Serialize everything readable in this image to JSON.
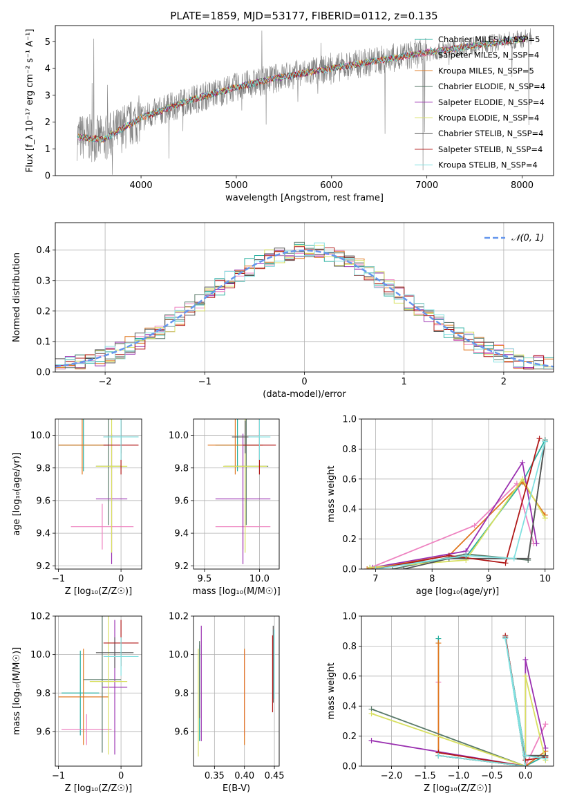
{
  "figure_title": "PLATE=1859, MJD=53177, FIBERID=0112, z=0.135",
  "colors": {
    "spectrum_gray": "#808080",
    "models": [
      "#2ab0a0",
      "#ee82c0",
      "#e07820",
      "#5a7a6a",
      "#9a30b0",
      "#d8e060",
      "#555555",
      "#b01818",
      "#80e0e0"
    ],
    "normal_dashed": "#6495ed",
    "grid": "#b0b0b0"
  },
  "models": [
    {
      "name": "Chabrier MILES, N$_{SSP}$=5",
      "color": "#2ab0a0"
    },
    {
      "name": "Salpeter MILES, N$_{SSP}$=4",
      "color": "#ee82c0"
    },
    {
      "name": "Kroupa MILES, N$_{SSP}$=5",
      "color": "#e07820"
    },
    {
      "name": "Chabrier ELODIE, N$_{SSP}$=4",
      "color": "#5a7a6a"
    },
    {
      "name": "Salpeter ELODIE, N$_{SSP}$=4",
      "color": "#9a30b0"
    },
    {
      "name": "Kroupa ELODIE, N$_{SSP}$=4",
      "color": "#d8e060"
    },
    {
      "name": "Chabrier STELIB, N$_{SSP}$=4",
      "color": "#555555"
    },
    {
      "name": "Salpeter STELIB, N$_{SSP}$=4",
      "color": "#b01818"
    },
    {
      "name": "Kroupa STELIB, N$_{SSP}$=4",
      "color": "#80e0e0"
    }
  ],
  "legend_labels": [
    "Chabrier MILES, N_SSP=5",
    "Salpeter MILES, N_SSP=4",
    "Kroupa MILES, N_SSP=5",
    "Chabrier ELODIE, N_SSP=4",
    "Salpeter ELODIE, N_SSP=4",
    "Kroupa ELODIE, N_SSP=4",
    "Chabrier STELIB, N_SSP=4",
    "Salpeter STELIB, N_SSP=4",
    "Kroupa STELIB, N_SSP=4"
  ],
  "chart_data": [
    {
      "id": "spectrum",
      "type": "line",
      "xlabel": "wavelength [Angstrom, rest frame]",
      "ylabel": "Flux [f_λ 10⁻¹⁷ erg cm⁻² s⁻¹ A⁻¹]",
      "xlim": [
        3100,
        8330
      ],
      "ylim": [
        0,
        5.6
      ],
      "xticks": [
        4000,
        5000,
        6000,
        7000,
        8000
      ],
      "yticks": [
        0,
        1,
        2,
        3,
        4,
        5
      ],
      "grid": false,
      "legend": "upper-right",
      "continuum": {
        "x": [
          3330,
          3600,
          4000,
          4500,
          5000,
          5500,
          6000,
          6500,
          7000,
          7500,
          8000,
          8100
        ],
        "y": [
          1.45,
          1.35,
          2.15,
          2.8,
          3.3,
          3.7,
          4.0,
          4.3,
          4.6,
          4.85,
          5.1,
          5.2
        ]
      }
    },
    {
      "id": "residual_histogram",
      "type": "line",
      "xlabel": "(data-model)/error",
      "ylabel": "Normed distribution",
      "xlim": [
        -2.5,
        2.5
      ],
      "ylim": [
        0,
        0.49
      ],
      "xticks": [
        -2,
        -1,
        0,
        1,
        2
      ],
      "yticks": [
        0.0,
        0.1,
        0.2,
        0.3,
        0.4
      ],
      "grid": true,
      "legend": "upper-right",
      "reference_label": "𝒩(0, 1)",
      "bin_width": 0.1
    },
    {
      "id": "age_vs_Z",
      "type": "scatter",
      "xlabel": "Z [log₁₀(Z/Z☉)]",
      "ylabel": "age  [log₁₀(age/yr)]",
      "xlim": [
        -1.05,
        0.33
      ],
      "ylim": [
        9.18,
        10.1
      ],
      "xticks": [
        -1,
        0
      ],
      "yticks": [
        9.2,
        9.4,
        9.6,
        9.8,
        10.0
      ],
      "grid": true,
      "points": [
        {
          "x": -0.6,
          "xerr": 0.4,
          "y": 9.94,
          "yerr": 0.16
        },
        {
          "x": -0.3,
          "xerr": 0.5,
          "y": 9.44,
          "yerr": 0.14
        },
        {
          "x": -0.62,
          "xerr": 0.38,
          "y": 9.94,
          "yerr": 0.18
        },
        {
          "x": -0.2,
          "xerr": 0.2,
          "y": 9.81,
          "yerr": 0.36
        },
        {
          "x": -0.15,
          "xerr": 0.25,
          "y": 9.61,
          "yerr": 0.4
        },
        {
          "x": -0.15,
          "xerr": 0.25,
          "y": 9.81,
          "yerr": 0.53
        },
        {
          "x": 0.0,
          "xerr": 0.28,
          "y": 9.99,
          "yerr": 0.1
        },
        {
          "x": 0.0,
          "xerr": 0.28,
          "y": 9.94,
          "yerr": 0.18
        },
        {
          "x": 0.0,
          "xerr": 0.28,
          "y": 9.99,
          "yerr": 0.14
        }
      ]
    },
    {
      "id": "age_vs_mass",
      "type": "scatter",
      "xlabel": "mass [log₁₀(M/M☉)]",
      "ylabel": "",
      "xlim": [
        9.4,
        10.18
      ],
      "ylim": [
        9.18,
        10.1
      ],
      "xticks": [
        9.5,
        10.0
      ],
      "yticks": [
        9.2,
        9.4,
        9.6,
        9.8,
        10.0
      ],
      "grid": true,
      "points": [
        {
          "x": 9.8,
          "xerr": 0.2,
          "y": 9.94,
          "yerr": 0.16
        },
        {
          "x": 9.85,
          "xerr": 0.25,
          "y": 9.44,
          "yerr": 0.14
        },
        {
          "x": 9.78,
          "xerr": 0.25,
          "y": 9.94,
          "yerr": 0.18
        },
        {
          "x": 9.88,
          "xerr": 0.2,
          "y": 9.81,
          "yerr": 0.36
        },
        {
          "x": 9.85,
          "xerr": 0.25,
          "y": 9.61,
          "yerr": 0.4
        },
        {
          "x": 9.87,
          "xerr": 0.2,
          "y": 9.81,
          "yerr": 0.53
        },
        {
          "x": 9.87,
          "xerr": 0.12,
          "y": 9.99,
          "yerr": 0.1
        },
        {
          "x": 10.0,
          "xerr": 0.15,
          "y": 9.94,
          "yerr": 0.18
        },
        {
          "x": 10.0,
          "xerr": 0.1,
          "y": 9.99,
          "yerr": 0.14
        }
      ]
    },
    {
      "id": "mass_weight_vs_age",
      "type": "line",
      "xlabel": "age  [log₁₀(age/yr)]",
      "ylabel": "mass weight",
      "xlim": [
        6.75,
        10.15
      ],
      "ylim": [
        0,
        1
      ],
      "xticks": [
        7,
        8,
        9,
        10
      ],
      "yticks": [
        0.0,
        0.2,
        0.4,
        0.6,
        0.8,
        1.0
      ],
      "grid": true,
      "series": [
        {
          "x": [
            6.9,
            8.6,
            9.6,
            10.0
          ],
          "y": [
            0.01,
            0.08,
            0.58,
            0.86
          ]
        },
        {
          "x": [
            6.85,
            8.75,
            9.5,
            9.8
          ],
          "y": [
            0.0,
            0.29,
            0.57,
            0.17
          ]
        },
        {
          "x": [
            6.85,
            8.3,
            9.6,
            10.0
          ],
          "y": [
            0.0,
            0.09,
            0.58,
            0.36
          ]
        },
        {
          "x": [
            7.3,
            8.6,
            9.7,
            10.0
          ],
          "y": [
            0.0,
            0.1,
            0.06,
            0.86
          ]
        },
        {
          "x": [
            6.95,
            8.6,
            9.6,
            9.85
          ],
          "y": [
            0.01,
            0.12,
            0.71,
            0.17
          ]
        },
        {
          "x": [
            6.9,
            8.6,
            9.6,
            10.0
          ],
          "y": [
            0.01,
            0.06,
            0.6,
            0.34
          ]
        },
        {
          "x": [
            7.5,
            8.3,
            9.7,
            10.0
          ],
          "y": [
            0.0,
            0.07,
            0.07,
            0.85
          ]
        },
        {
          "x": [
            7.0,
            8.3,
            9.3,
            9.9
          ],
          "y": [
            0.0,
            0.09,
            0.04,
            0.87
          ]
        },
        {
          "x": [
            7.0,
            8.6,
            9.45,
            10.0
          ],
          "y": [
            0.0,
            0.09,
            0.07,
            0.85
          ]
        }
      ]
    },
    {
      "id": "mass_vs_Z",
      "type": "scatter",
      "xlabel": "Z [log₁₀(Z/Z☉)]",
      "ylabel": "mass [log₁₀(M/M☉)]",
      "xlim": [
        -1.05,
        0.33
      ],
      "ylim": [
        9.42,
        10.2
      ],
      "xticks": [
        -1,
        0
      ],
      "yticks": [
        9.6,
        9.8,
        10.0,
        10.2
      ],
      "grid": true,
      "points": [
        {
          "x": -0.65,
          "xerr": 0.3,
          "y": 9.8,
          "yerr": 0.22
        },
        {
          "x": -0.55,
          "xerr": 0.4,
          "y": 9.61,
          "yerr": 0.08
        },
        {
          "x": -0.6,
          "xerr": 0.4,
          "y": 9.78,
          "yerr": 0.25
        },
        {
          "x": -0.3,
          "xerr": 0.3,
          "y": 9.87,
          "yerr": 0.38
        },
        {
          "x": -0.1,
          "xerr": 0.2,
          "y": 9.83,
          "yerr": 0.35
        },
        {
          "x": -0.2,
          "xerr": 0.3,
          "y": 9.86,
          "yerr": 0.38
        },
        {
          "x": -0.1,
          "xerr": 0.3,
          "y": 10.01,
          "yerr": 0.08
        },
        {
          "x": 0.0,
          "xerr": 0.28,
          "y": 10.06,
          "yerr": 0.12
        },
        {
          "x": 0.0,
          "xerr": 0.28,
          "y": 9.99,
          "yerr": 0.1
        }
      ]
    },
    {
      "id": "mass_vs_EBV",
      "type": "scatter",
      "xlabel": "E(B-V)",
      "ylabel": "",
      "xlim": [
        0.315,
        0.458
      ],
      "ylim": [
        9.42,
        10.2
      ],
      "xticks": [
        0.35,
        0.4,
        0.45
      ],
      "yticks": [
        9.6,
        9.8,
        10.0,
        10.2
      ],
      "grid": true,
      "points": [
        {
          "x": 0.325,
          "y": 9.8,
          "yerr": 0.25
        },
        {
          "x": 0.4,
          "y": 9.8,
          "yerr": 0.22
        },
        {
          "x": 0.4,
          "y": 9.78,
          "yerr": 0.25
        },
        {
          "x": 0.325,
          "y": 9.87,
          "yerr": 0.2
        },
        {
          "x": 0.328,
          "y": 9.85,
          "yerr": 0.3
        },
        {
          "x": 0.323,
          "y": 9.75,
          "yerr": 0.28
        },
        {
          "x": 0.448,
          "y": 9.95,
          "yerr": 0.2
        },
        {
          "x": 0.447,
          "y": 9.9,
          "yerr": 0.2
        },
        {
          "x": 0.45,
          "y": 9.95,
          "yerr": 0.18
        }
      ]
    },
    {
      "id": "mass_weight_vs_Z",
      "type": "line",
      "xlabel": "Z [log₁₀(Z/Z☉)]",
      "ylabel": "mass weight",
      "xlim": [
        -2.45,
        0.42
      ],
      "ylim": [
        0,
        1
      ],
      "xticks": [
        -2.0,
        -1.5,
        -1.0,
        -0.5,
        0.0
      ],
      "yticks": [
        0.0,
        0.2,
        0.4,
        0.6,
        0.8,
        1.0
      ],
      "grid": true,
      "series": [
        {
          "x": [
            -1.3,
            -1.3,
            0.0,
            0.3
          ],
          "y": [
            0.85,
            0.07,
            0.0,
            0.07
          ]
        },
        {
          "x": [
            -1.3,
            -1.3,
            0.0,
            0.3
          ],
          "y": [
            0.56,
            0.07,
            0.0,
            0.28
          ]
        },
        {
          "x": [
            -1.3,
            -1.3,
            0.0,
            0.3
          ],
          "y": [
            0.82,
            0.07,
            0.0,
            0.1
          ]
        },
        {
          "x": [
            -2.3,
            0.0,
            -0.3,
            0.0,
            0.3
          ],
          "y": [
            0.38,
            0.0,
            0.86,
            0.07,
            0.07
          ]
        },
        {
          "x": [
            -2.3,
            0.0,
            0.0,
            0.3
          ],
          "y": [
            0.17,
            0.0,
            0.71,
            0.12
          ]
        },
        {
          "x": [
            -2.3,
            0.0,
            0.0,
            0.3
          ],
          "y": [
            0.35,
            0.0,
            0.6,
            0.04
          ]
        },
        {
          "x": [
            -1.3,
            0.0,
            -0.3,
            0.0,
            0.3
          ],
          "y": [
            0.07,
            0.0,
            0.86,
            0.07,
            0.07
          ]
        },
        {
          "x": [
            -1.3,
            0.0,
            -0.3,
            0.0,
            0.3
          ],
          "y": [
            0.09,
            0.0,
            0.87,
            0.04,
            0.06
          ]
        },
        {
          "x": [
            -1.3,
            0.0,
            -0.3,
            0.0,
            0.3
          ],
          "y": [
            0.07,
            0.0,
            0.85,
            0.07,
            0.05
          ]
        }
      ]
    }
  ]
}
